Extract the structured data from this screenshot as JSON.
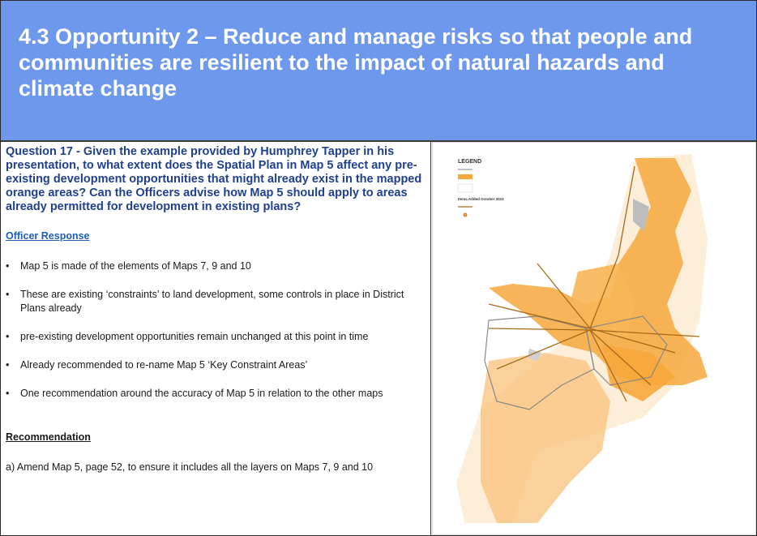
{
  "slide": {
    "title": "4.3 Opportunity 2 – Reduce and manage risks so that people and communities are resilient to the impact of natural hazards and climate change"
  },
  "question": "Question 17 - Given the example provided by Humphrey Tapper in his presentation, to what extent does the Spatial Plan in Map 5 affect any pre-existing development opportunities that might already exist in the mapped orange areas? Can the Officers advise how Map 5 should apply to areas already permitted for development in existing plans?",
  "officer_response": {
    "heading": "Officer Response",
    "bullets": [
      "Map 5 is made of the elements of Maps 7, 9 and 10",
      "These are existing ‘constraints’ to land development, some controls in place in District Plans  already",
      "pre-existing development opportunities remain unchanged at this point in time",
      "Already recommended to re-name Map 5 ‘Key Constraint Areas’",
      "One recommendation around the accuracy of Map 5 in relation to the other maps"
    ]
  },
  "recommendation": {
    "heading": "Recommendation",
    "text": "a) Amend Map 5, page 52, to ensure it includes all the layers on Maps 7, 9 and 10"
  },
  "map": {
    "legend": {
      "title": "LEGEND",
      "items_added_label": "Items Added October 2023"
    },
    "colors": {
      "constraint": "#f6a73c",
      "constraint_light": "#fbd7a2",
      "boundary": "#8a8a8a",
      "line": "#a66a1a"
    }
  }
}
